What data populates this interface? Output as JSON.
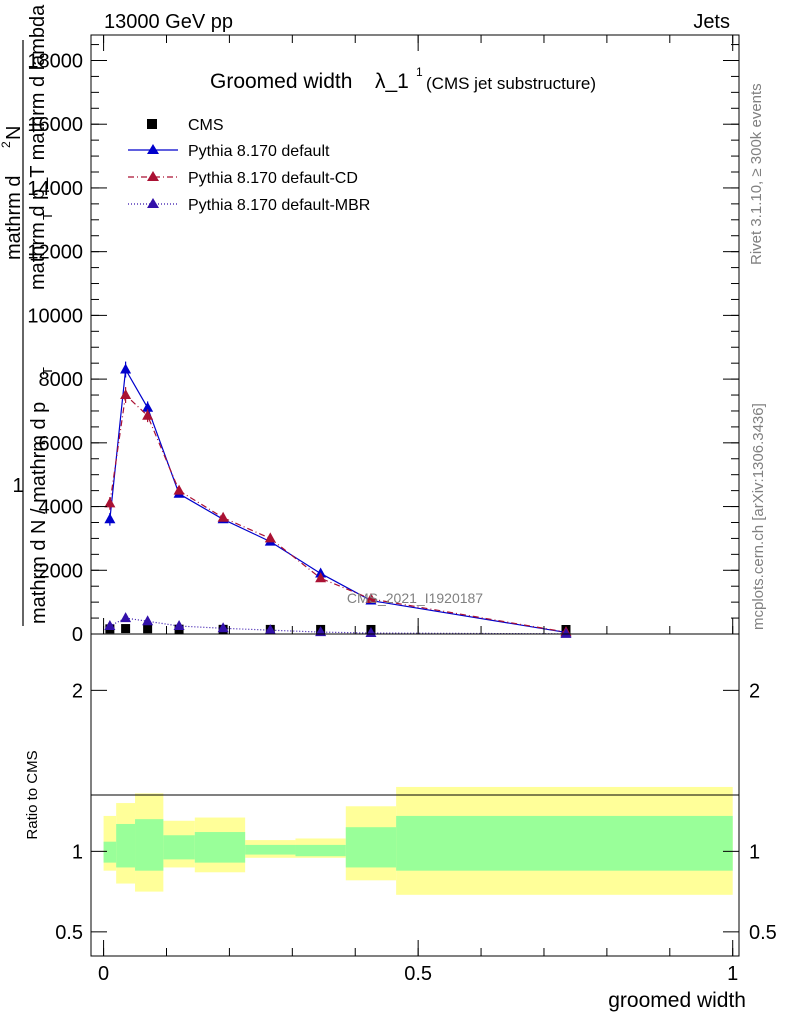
{
  "header": {
    "energy_label": "13000 GeV pp",
    "process_label": "Jets"
  },
  "side": {
    "rivet_label": "Rivet 3.1.10, ≥ 300k events",
    "mcplots_label": "mcplots.cern.ch [arXiv:1306.3436]"
  },
  "colors": {
    "cms": "#000000",
    "default": "#0000cc",
    "default_cd": "#aa1133",
    "default_mbr": "#3311aa",
    "band_outer": "#ffff99",
    "band_inner": "#99ff99"
  },
  "chart_data": [
    {
      "type": "line",
      "title": "Groomed width",
      "title_math": "λ_1",
      "title_sup": "1",
      "subtitle": "(CMS jet substructure)",
      "watermark": "CMS_2021_I1920187",
      "ylabel_prefix": "1",
      "ylabel_num": "mathrm d",
      "ylabel_num_sup": "2",
      "ylabel_num_suffix": "N",
      "ylabel_den": "mathrm d p_T mathrm d lambda",
      "ylabel_mid": "mathrm d N / mathrm d p",
      "ylabel_sub": "T",
      "xlim": [
        0,
        1
      ],
      "ylim": [
        0,
        18800
      ],
      "yticks": [
        0,
        2000,
        4000,
        6000,
        8000,
        10000,
        12000,
        14000,
        16000,
        18000
      ],
      "ytick_labels": [
        "0",
        "2000",
        "4000",
        "6000",
        "8000",
        "10000",
        "12000",
        "14000",
        "16000",
        "18000"
      ],
      "legend_position": "top-left",
      "series": [
        {
          "name": "CMS",
          "style": "square",
          "x": [
            0.01,
            0.035,
            0.07,
            0.12,
            0.19,
            0.265,
            0.345,
            0.425,
            0.735
          ],
          "y": [
            20,
            30,
            25,
            10,
            5,
            3,
            2,
            1,
            0
          ]
        },
        {
          "name": "Pythia 8.170 default",
          "style": "solid",
          "x": [
            0.01,
            0.035,
            0.07,
            0.12,
            0.19,
            0.265,
            0.345,
            0.425,
            0.735
          ],
          "y": [
            3600,
            8300,
            7100,
            4400,
            3600,
            2900,
            1900,
            1050,
            50
          ],
          "err": [
            200,
            250,
            200,
            100,
            80,
            60,
            50,
            30,
            5
          ]
        },
        {
          "name": "Pythia 8.170 default-CD",
          "style": "dashdot",
          "x": [
            0.01,
            0.035,
            0.07,
            0.12,
            0.19,
            0.265,
            0.345,
            0.425,
            0.735
          ],
          "y": [
            4100,
            7500,
            6850,
            4500,
            3650,
            3000,
            1750,
            1100,
            60
          ],
          "err": [
            200,
            250,
            200,
            100,
            80,
            60,
            50,
            30,
            5
          ]
        },
        {
          "name": "Pythia 8.170 default-MBR",
          "style": "dotted",
          "x": [
            0.01,
            0.035,
            0.07,
            0.12,
            0.19,
            0.265,
            0.345,
            0.425,
            0.735
          ],
          "y": [
            250,
            500,
            400,
            250,
            180,
            120,
            60,
            30,
            5
          ],
          "err": [
            30,
            40,
            40,
            20,
            15,
            10,
            8,
            5,
            2
          ]
        }
      ]
    },
    {
      "type": "area",
      "ylabel": "Ratio to CMS",
      "xlabel": "groomed width",
      "xlim": [
        -0.02,
        1.01
      ],
      "ylim": [
        0.35,
        2.35
      ],
      "yticks": [
        0.5,
        1,
        2
      ],
      "ytick_labels": [
        "0.5",
        "1",
        "2"
      ],
      "xticks": [
        0,
        0.5,
        1
      ],
      "xtick_labels": [
        "0",
        "0.5",
        "1"
      ],
      "bin_edges": [
        0,
        0.02,
        0.05,
        0.095,
        0.145,
        0.225,
        0.305,
        0.385,
        0.465,
        1.0
      ],
      "outer_band": {
        "lo": [
          0.88,
          0.8,
          0.75,
          0.9,
          0.87,
          0.96,
          0.96,
          0.82,
          0.73
        ],
        "hi": [
          1.22,
          1.3,
          1.36,
          1.19,
          1.21,
          1.07,
          1.08,
          1.28,
          1.4
        ]
      },
      "inner_band": {
        "lo": [
          0.93,
          0.9,
          0.88,
          0.95,
          0.93,
          0.98,
          0.97,
          0.9,
          0.88
        ],
        "hi": [
          1.06,
          1.17,
          1.2,
          1.1,
          1.12,
          1.04,
          1.04,
          1.15,
          1.22
        ]
      },
      "reference": 1
    }
  ]
}
